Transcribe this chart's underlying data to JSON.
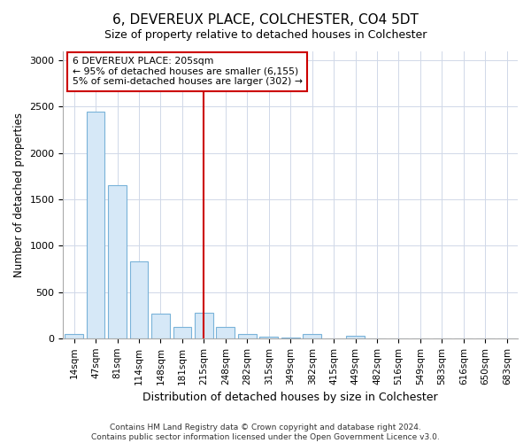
{
  "title": "6, DEVEREUX PLACE, COLCHESTER, CO4 5DT",
  "subtitle": "Size of property relative to detached houses in Colchester",
  "xlabel": "Distribution of detached houses by size in Colchester",
  "ylabel": "Number of detached properties",
  "categories": [
    "14sqm",
    "47sqm",
    "81sqm",
    "114sqm",
    "148sqm",
    "181sqm",
    "215sqm",
    "248sqm",
    "282sqm",
    "315sqm",
    "349sqm",
    "382sqm",
    "415sqm",
    "449sqm",
    "482sqm",
    "516sqm",
    "549sqm",
    "583sqm",
    "616sqm",
    "650sqm",
    "683sqm"
  ],
  "values": [
    50,
    2450,
    1650,
    830,
    270,
    120,
    280,
    120,
    50,
    15,
    5,
    50,
    0,
    30,
    0,
    0,
    0,
    0,
    0,
    0,
    0
  ],
  "bar_color": "#d6e8f7",
  "bar_edge_color": "#7ab3d9",
  "vline_color": "#cc0000",
  "vline_x": 6,
  "annotation_text": "6 DEVEREUX PLACE: 205sqm\n← 95% of detached houses are smaller (6,155)\n5% of semi-detached houses are larger (302) →",
  "annotation_box_color": "#ffffff",
  "annotation_box_edge": "#cc0000",
  "footnote": "Contains HM Land Registry data © Crown copyright and database right 2024.\nContains public sector information licensed under the Open Government Licence v3.0.",
  "ylim": [
    0,
    3100
  ],
  "yticks": [
    0,
    500,
    1000,
    1500,
    2000,
    2500,
    3000
  ],
  "bg_color": "#ffffff",
  "title_fontsize": 11,
  "subtitle_fontsize": 9
}
